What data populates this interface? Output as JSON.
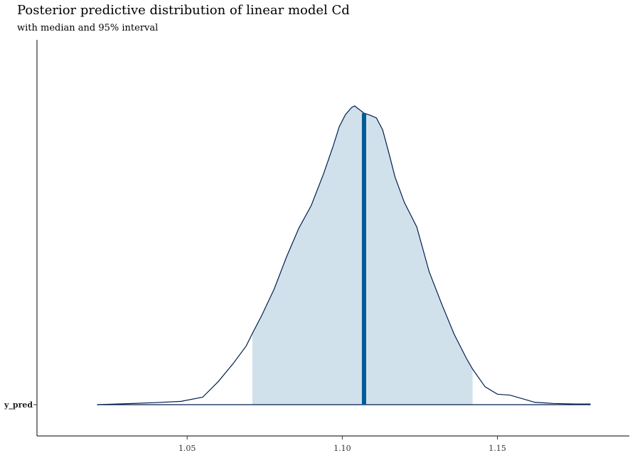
{
  "chart_data": {
    "type": "area",
    "title": "Posterior predictive distribution of linear model Cd",
    "subtitle": "with median and 95% interval",
    "category": "y_pred",
    "xlabel": "",
    "ylabel": "",
    "xlim": [
      1.0016,
      1.1925
    ],
    "x_ticks": [
      {
        "value": 1.05,
        "label": "1.05"
      },
      {
        "value": 1.1,
        "label": "1.10"
      },
      {
        "value": 1.15,
        "label": "1.15"
      }
    ],
    "median": 1.107,
    "interval_95": [
      1.071,
      1.142
    ],
    "density": {
      "x": [
        1.021,
        1.03,
        1.04,
        1.048,
        1.055,
        1.06,
        1.065,
        1.069,
        1.071,
        1.074,
        1.078,
        1.082,
        1.086,
        1.09,
        1.094,
        1.097,
        1.099,
        1.101,
        1.103,
        1.104,
        1.105,
        1.107,
        1.109,
        1.111,
        1.113,
        1.115,
        1.117,
        1.12,
        1.124,
        1.128,
        1.132,
        1.136,
        1.14,
        1.142,
        1.146,
        1.15,
        1.154,
        1.158,
        1.162,
        1.168,
        1.175,
        1.18
      ],
      "y": [
        0.0,
        0.003,
        0.007,
        0.011,
        0.025,
        0.077,
        0.14,
        0.196,
        0.238,
        0.298,
        0.386,
        0.494,
        0.591,
        0.667,
        0.774,
        0.864,
        0.93,
        0.971,
        0.995,
        1.0,
        0.992,
        0.976,
        0.969,
        0.96,
        0.92,
        0.843,
        0.762,
        0.677,
        0.595,
        0.445,
        0.338,
        0.237,
        0.155,
        0.119,
        0.06,
        0.035,
        0.032,
        0.02,
        0.008,
        0.004,
        0.002,
        0.002
      ]
    },
    "colors": {
      "fill": "#d1e1ec",
      "line": "#011f4b",
      "median": "#005b96",
      "axis": "#000000"
    },
    "grid": false,
    "legend": "none"
  }
}
